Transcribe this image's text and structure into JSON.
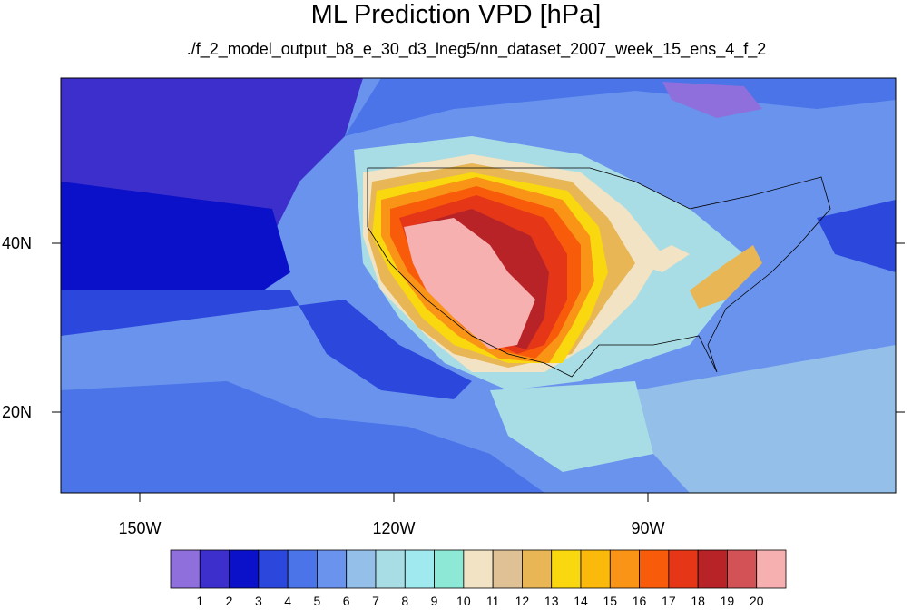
{
  "title": "ML Prediction VPD [hPa]",
  "subtitle": "./f_2_model_output_b8_e_30_d3_lneg5/nn_dataset_2007_week_15_ens_4_f_2",
  "y_axis_labels": [
    "40N",
    "20N"
  ],
  "x_axis_labels": [
    "150W",
    "120W",
    "90W"
  ],
  "colorbar": {
    "labels": [
      "1",
      "2",
      "3",
      "4",
      "5",
      "6",
      "7",
      "8",
      "9",
      "10",
      "11",
      "12",
      "13",
      "14",
      "15",
      "16",
      "17",
      "18",
      "19",
      "20"
    ],
    "colors": [
      "#8e6fdb",
      "#3c2fcb",
      "#0a11c8",
      "#2c47dc",
      "#4a74e8",
      "#6a93ee",
      "#93bfe8",
      "#a9dde6",
      "#9fe9ef",
      "#8ee8d6",
      "#f1e3c3",
      "#e0c195",
      "#e8b655",
      "#f9d80f",
      "#fbb90c",
      "#f99416",
      "#f85c0b",
      "#e53718",
      "#b82328",
      "#d35255",
      "#f7b0b0"
    ]
  }
}
